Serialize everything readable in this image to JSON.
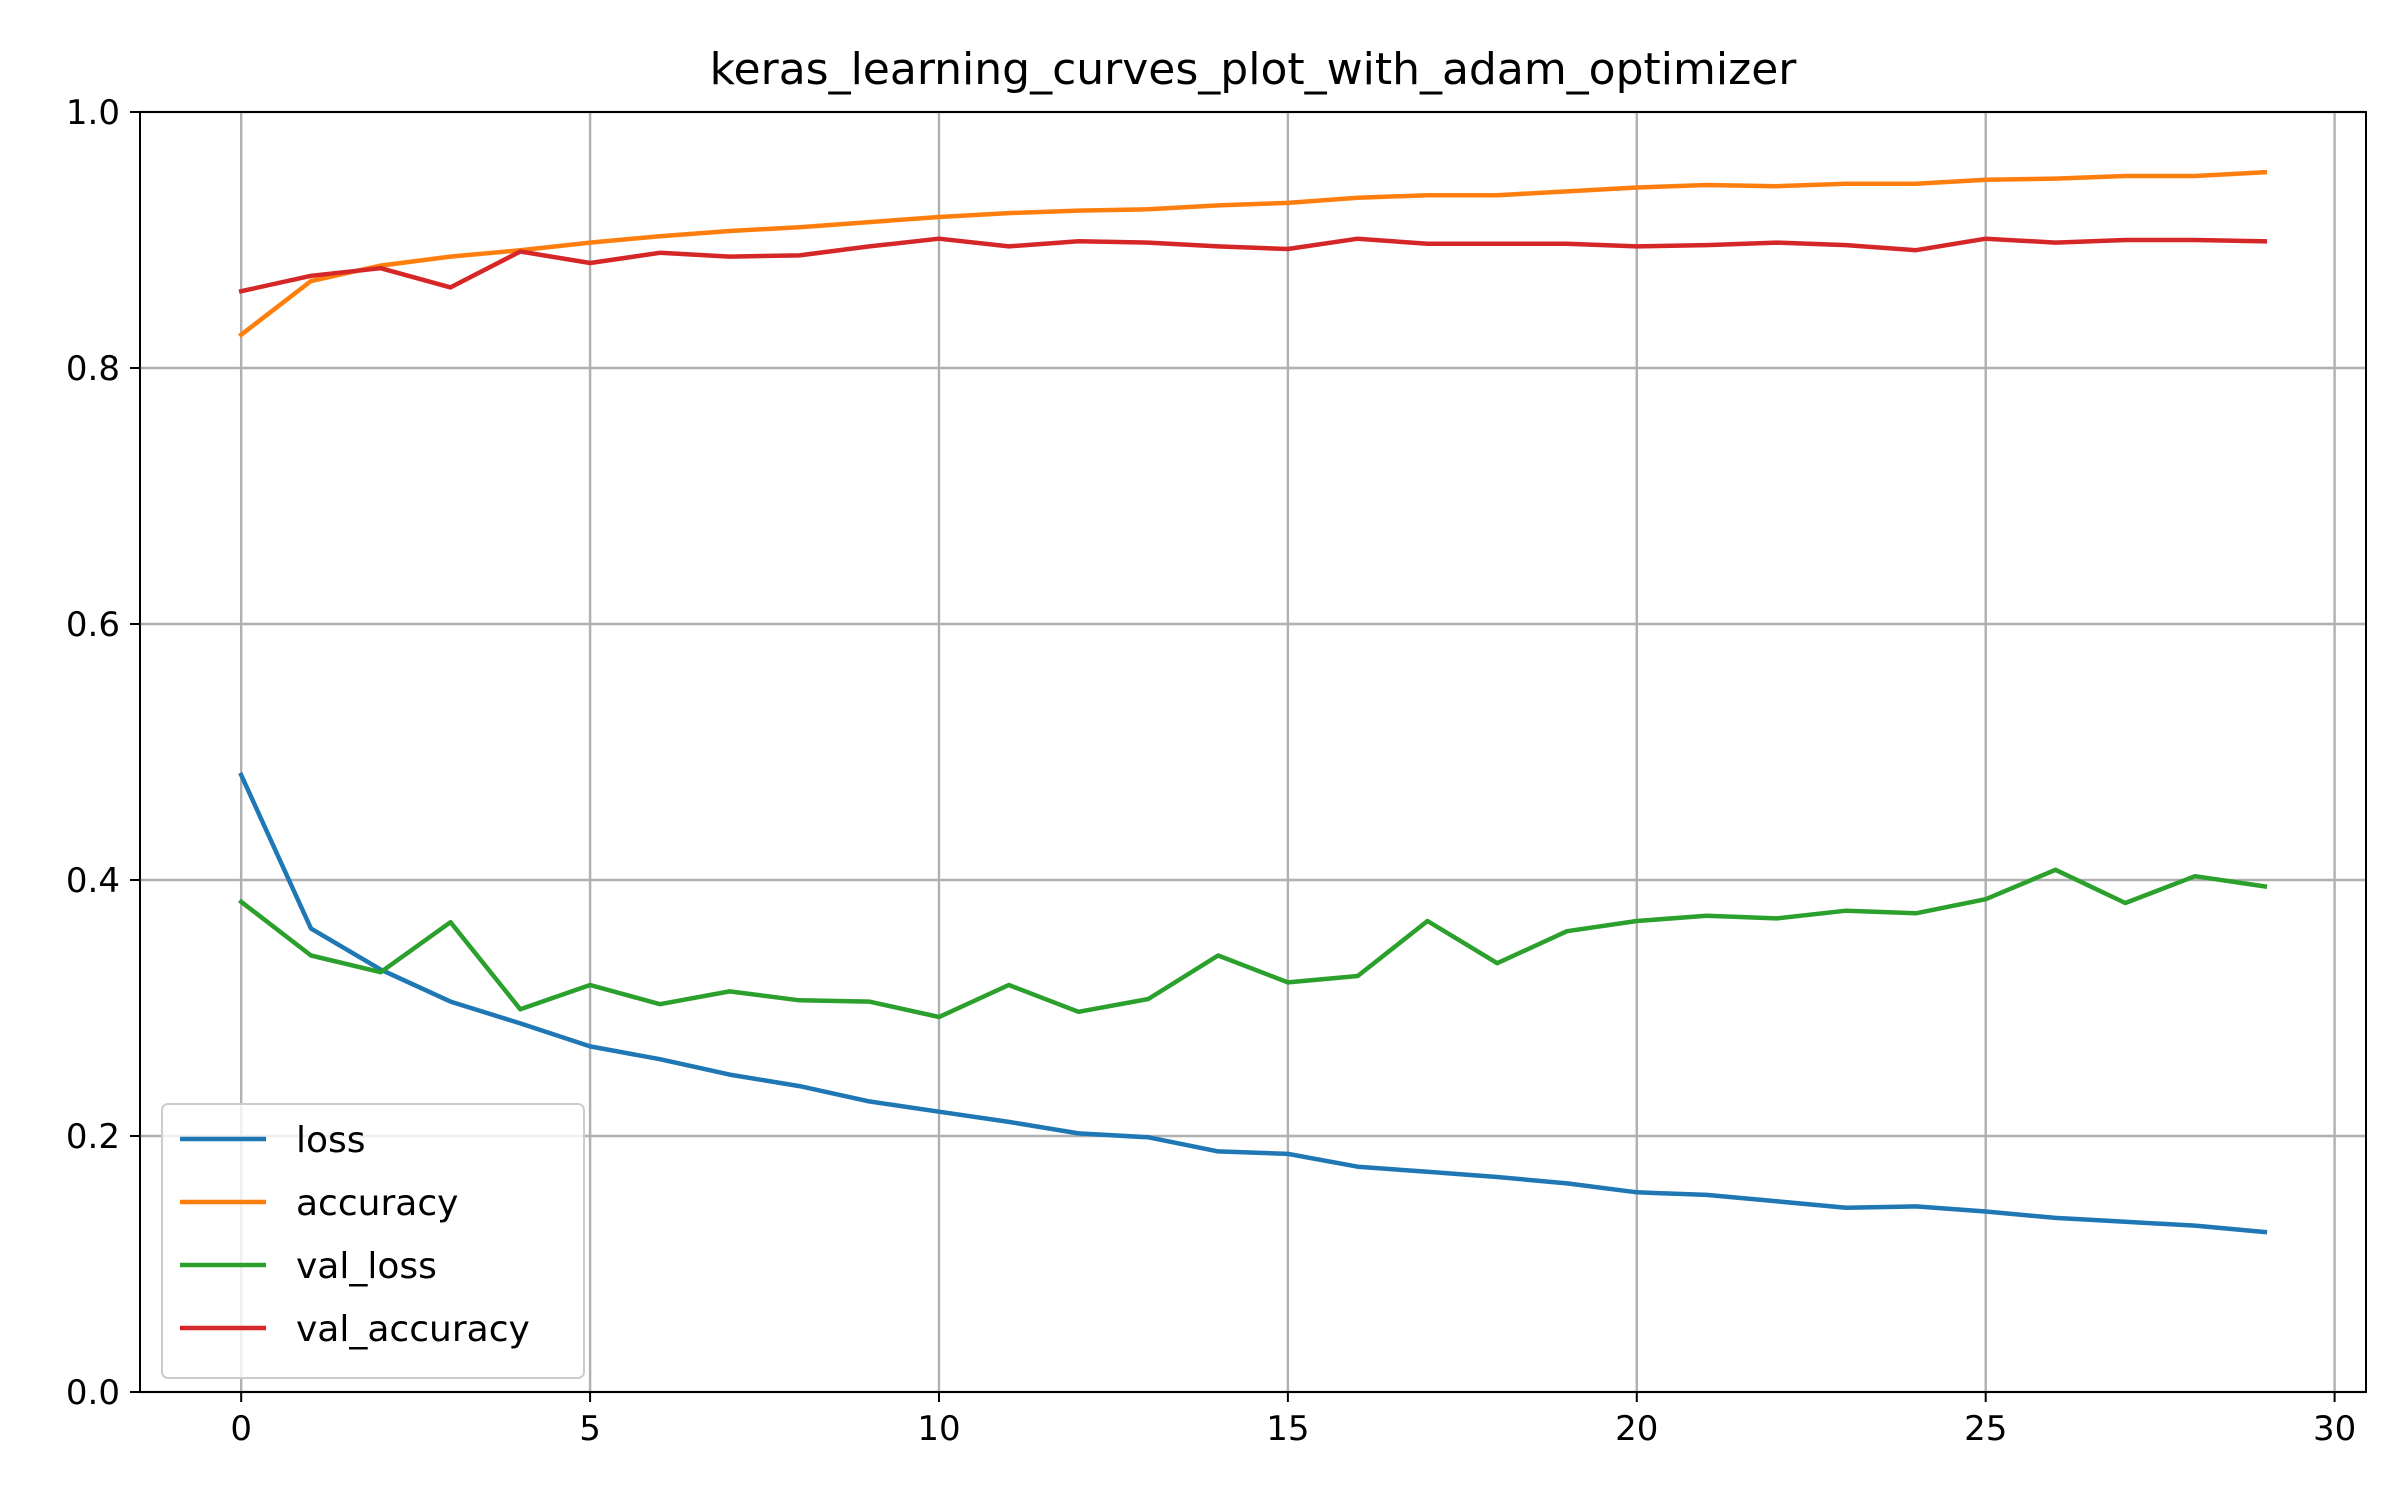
{
  "chart_data": {
    "type": "line",
    "title": "keras_learning_curves_plot_with_adam_optimizer",
    "xlabel": "",
    "ylabel": "",
    "xlim": [
      -1.45,
      30.45
    ],
    "ylim": [
      0.0,
      1.0
    ],
    "xticks": [
      0,
      5,
      10,
      15,
      20,
      25,
      30
    ],
    "yticks": [
      0.0,
      0.2,
      0.4,
      0.6,
      0.8,
      1.0
    ],
    "xtick_labels": [
      "0",
      "5",
      "10",
      "15",
      "20",
      "25",
      "30"
    ],
    "ytick_labels": [
      "0.0",
      "0.2",
      "0.4",
      "0.6",
      "0.8",
      "1.0"
    ],
    "grid": true,
    "legend_position": "lower-left",
    "x": [
      0,
      1,
      2,
      3,
      4,
      5,
      6,
      7,
      8,
      9,
      10,
      11,
      12,
      13,
      14,
      15,
      16,
      17,
      18,
      19,
      20,
      21,
      22,
      23,
      24,
      25,
      26,
      27,
      28,
      29
    ],
    "series": [
      {
        "name": "loss",
        "color": "#1f77b4",
        "values": [
          0.482,
          0.362,
          0.33,
          0.305,
          0.288,
          0.27,
          0.26,
          0.248,
          0.239,
          0.227,
          0.219,
          0.211,
          0.202,
          0.199,
          0.188,
          0.186,
          0.176,
          0.172,
          0.168,
          0.163,
          0.156,
          0.154,
          0.149,
          0.144,
          0.145,
          0.141,
          0.136,
          0.133,
          0.13,
          0.125
        ]
      },
      {
        "name": "accuracy",
        "color": "#ff7f0e",
        "values": [
          0.826,
          0.868,
          0.88,
          0.887,
          0.892,
          0.898,
          0.903,
          0.907,
          0.91,
          0.914,
          0.918,
          0.921,
          0.923,
          0.924,
          0.927,
          0.929,
          0.933,
          0.935,
          0.935,
          0.938,
          0.941,
          0.943,
          0.942,
          0.944,
          0.944,
          0.947,
          0.948,
          0.95,
          0.95,
          0.953
        ]
      },
      {
        "name": "val_loss",
        "color": "#2ca02c",
        "values": [
          0.383,
          0.341,
          0.328,
          0.367,
          0.299,
          0.318,
          0.303,
          0.313,
          0.306,
          0.305,
          0.293,
          0.318,
          0.297,
          0.307,
          0.341,
          0.32,
          0.325,
          0.368,
          0.335,
          0.36,
          0.368,
          0.372,
          0.37,
          0.376,
          0.374,
          0.385,
          0.408,
          0.382,
          0.403,
          0.395
        ]
      },
      {
        "name": "val_accuracy",
        "color": "#d62728",
        "values": [
          0.86,
          0.872,
          0.878,
          0.863,
          0.891,
          0.882,
          0.89,
          0.887,
          0.888,
          0.895,
          0.901,
          0.895,
          0.899,
          0.898,
          0.895,
          0.893,
          0.901,
          0.897,
          0.897,
          0.897,
          0.895,
          0.896,
          0.898,
          0.896,
          0.892,
          0.901,
          0.898,
          0.9,
          0.9,
          0.899
        ]
      }
    ]
  }
}
